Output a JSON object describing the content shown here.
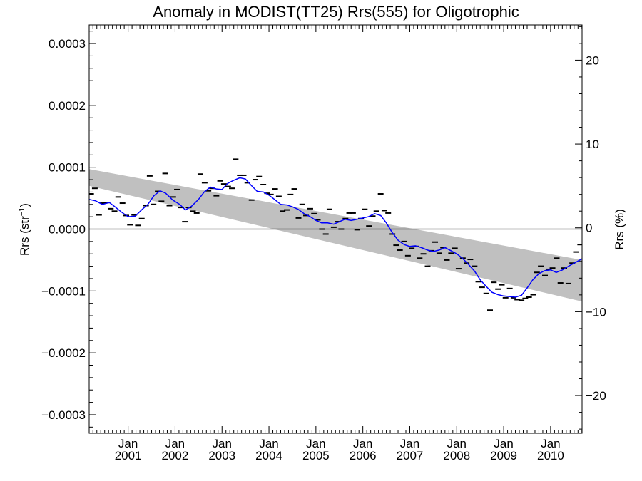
{
  "chart_data": {
    "type": "line",
    "title": "Anomaly in MODIST(TT25) Rrs(555) for Oligotrophic",
    "ylabel_left": "Rrs (str",
    "ylabel_left_sup": "−1",
    "ylabel_left_close": ")",
    "ylabel_right": "Rrs (%)",
    "xlim": [
      2000.17,
      2010.67
    ],
    "ylim_left": [
      -0.00033,
      0.00033
    ],
    "ylim_right": [
      -24.5,
      24.2
    ],
    "left_ticks": [
      {
        "value": 0.0003,
        "label": "0.0003"
      },
      {
        "value": 0.0002,
        "label": "0.0002"
      },
      {
        "value": 0.0001,
        "label": "0.0001"
      },
      {
        "value": 0.0,
        "label": "0.0000"
      },
      {
        "value": -0.0001,
        "label": "−0.0001"
      },
      {
        "value": -0.0002,
        "label": "−0.0002"
      },
      {
        "value": -0.0003,
        "label": "−0.0003"
      }
    ],
    "right_ticks": [
      {
        "value": 20,
        "label": "20"
      },
      {
        "value": 10,
        "label": "10"
      },
      {
        "value": 0,
        "label": "0"
      },
      {
        "value": -10,
        "label": "−10"
      },
      {
        "value": -20,
        "label": "−20"
      }
    ],
    "x_ticks": [
      {
        "value": 2001.0,
        "month": "Jan",
        "year": "2001"
      },
      {
        "value": 2002.0,
        "month": "Jan",
        "year": "2002"
      },
      {
        "value": 2003.0,
        "month": "Jan",
        "year": "2003"
      },
      {
        "value": 2004.0,
        "month": "Jan",
        "year": "2004"
      },
      {
        "value": 2005.0,
        "month": "Jan",
        "year": "2005"
      },
      {
        "value": 2006.0,
        "month": "Jan",
        "year": "2006"
      },
      {
        "value": 2007.0,
        "month": "Jan",
        "year": "2007"
      },
      {
        "value": 2008.0,
        "month": "Jan",
        "year": "2008"
      },
      {
        "value": 2009.0,
        "month": "Jan",
        "year": "2009"
      },
      {
        "value": 2010.0,
        "month": "Jan",
        "year": "2010"
      }
    ],
    "zero_line": 0.0,
    "trend_band": {
      "x": [
        2000.17,
        2010.67
      ],
      "upper": [
        9.7e-05,
        -5e-05
      ],
      "lower": [
        7e-05,
        -0.000117
      ],
      "color": "#c0c0c0"
    },
    "monthly_anomalies": {
      "color": "#000000",
      "x": [
        2000.21,
        2000.29,
        2000.38,
        2000.46,
        2000.54,
        2000.63,
        2000.71,
        2000.79,
        2000.88,
        2000.96,
        2001.04,
        2001.13,
        2001.21,
        2001.29,
        2001.38,
        2001.46,
        2001.54,
        2001.63,
        2001.71,
        2001.79,
        2001.88,
        2001.96,
        2002.04,
        2002.13,
        2002.21,
        2002.29,
        2002.38,
        2002.46,
        2002.54,
        2002.63,
        2002.71,
        2002.79,
        2002.88,
        2002.96,
        2003.04,
        2003.13,
        2003.21,
        2003.29,
        2003.38,
        2003.46,
        2003.54,
        2003.63,
        2003.71,
        2003.79,
        2003.88,
        2003.96,
        2004.04,
        2004.13,
        2004.21,
        2004.29,
        2004.38,
        2004.46,
        2004.54,
        2004.63,
        2004.71,
        2004.79,
        2004.88,
        2004.96,
        2005.04,
        2005.13,
        2005.21,
        2005.29,
        2005.38,
        2005.46,
        2005.54,
        2005.63,
        2005.71,
        2005.79,
        2005.88,
        2005.96,
        2006.04,
        2006.13,
        2006.21,
        2006.29,
        2006.38,
        2006.46,
        2006.54,
        2006.63,
        2006.71,
        2006.79,
        2006.88,
        2006.96,
        2007.04,
        2007.13,
        2007.21,
        2007.29,
        2007.38,
        2007.46,
        2007.54,
        2007.63,
        2007.71,
        2007.79,
        2007.88,
        2007.96,
        2008.04,
        2008.13,
        2008.21,
        2008.29,
        2008.38,
        2008.46,
        2008.54,
        2008.63,
        2008.71,
        2008.79,
        2008.88,
        2008.96,
        2009.04,
        2009.13,
        2009.21,
        2009.29,
        2009.38,
        2009.46,
        2009.54,
        2009.63,
        2009.71,
        2009.79,
        2009.88,
        2009.96,
        2010.04,
        2010.13,
        2010.21,
        2010.29,
        2010.38,
        2010.46,
        2010.54,
        2010.63
      ],
      "y": [
        5.7e-05,
        6.6e-05,
        2.3e-05,
        4.2e-05,
        4.3e-05,
        3.3e-05,
        2.9e-05,
        5.2e-05,
        4.2e-05,
        2.2e-05,
        7e-06,
        2.3e-05,
        6e-06,
        1.7e-05,
        3.8e-05,
        8.6e-05,
        4e-05,
        6.1e-05,
        4.5e-05,
        9e-05,
        3.8e-05,
        5.2e-05,
        6.4e-05,
        3.5e-05,
        1.2e-05,
        3.5e-05,
        2.9e-05,
        2.6e-05,
        8.9e-05,
        7.5e-05,
        6.2e-05,
        6.6e-05,
        5.4e-05,
        7.8e-05,
        7.3e-05,
        6.9e-05,
        6.6e-05,
        0.000113,
        8.7e-05,
        8.7e-05,
        7.5e-05,
        4.7e-05,
        8e-05,
        8.5e-05,
        7.2e-05,
        5.8e-05,
        5.6e-05,
        6.5e-05,
        5.3e-05,
        2.9e-05,
        3.1e-05,
        5.6e-05,
        6.5e-05,
        1.8e-05,
        4e-05,
        2.2e-05,
        3.3e-05,
        2.5e-05,
        1.5e-05,
        0.0,
        -8e-06,
        3.2e-05,
        3e-06,
        1.2e-05,
        0.0,
        1.7e-05,
        2.6e-05,
        2.6e-05,
        -1e-06,
        1.7e-05,
        3.2e-05,
        5e-06,
        2.1e-05,
        2.9e-05,
        5.7e-05,
        3e-05,
        2.6e-05,
        -8e-06,
        -2.6e-05,
        -3.4e-05,
        -2e-05,
        -4.3e-05,
        -3.1e-05,
        -2.8e-05,
        -4.7e-05,
        -4e-05,
        -6e-05,
        -3.5e-05,
        -2.1e-05,
        -3.9e-05,
        -3e-05,
        -5e-05,
        -3.9e-05,
        -3.1e-05,
        -6.4e-05,
        -4.7e-05,
        -5.5e-05,
        -4.9e-05,
        -6e-05,
        -8.5e-05,
        -9.4e-05,
        -0.000104,
        -0.000131,
        -8.6e-05,
        -9.7e-05,
        -9e-05,
        -0.000111,
        -9.6e-05,
        -0.000111,
        -0.000114,
        -0.000115,
        -0.000112,
        -0.00011,
        -0.000106,
        -7e-05,
        -6e-05,
        -7.5e-05,
        -6.5e-05,
        -6.3e-05,
        -4.7e-05,
        -8.7e-05,
        -6.3e-05,
        -8.8e-05,
        -5.5e-05,
        -3.7e-05,
        -2.5e-05
      ]
    },
    "running_mean": {
      "color": "#0000ff",
      "x": [
        2000.17,
        2000.3,
        2000.45,
        2000.6,
        2000.72,
        2000.85,
        2001.0,
        2001.15,
        2001.3,
        2001.42,
        2001.55,
        2001.68,
        2001.8,
        2001.95,
        2002.1,
        2002.22,
        2002.35,
        2002.5,
        2002.62,
        2002.75,
        2002.88,
        2003.0,
        2003.12,
        2003.25,
        2003.38,
        2003.5,
        2003.62,
        2003.75,
        2003.88,
        2004.0,
        2004.12,
        2004.25,
        2004.38,
        2004.5,
        2004.62,
        2004.75,
        2004.88,
        2005.0,
        2005.12,
        2005.25,
        2005.38,
        2005.5,
        2005.62,
        2005.75,
        2005.88,
        2006.0,
        2006.12,
        2006.25,
        2006.38,
        2006.5,
        2006.62,
        2006.75,
        2006.88,
        2007.0,
        2007.12,
        2007.25,
        2007.38,
        2007.5,
        2007.62,
        2007.75,
        2007.88,
        2008.0,
        2008.12,
        2008.25,
        2008.38,
        2008.5,
        2008.62,
        2008.75,
        2008.88,
        2009.0,
        2009.12,
        2009.25,
        2009.38,
        2009.5,
        2009.62,
        2009.75,
        2009.88,
        2010.0,
        2010.12,
        2010.25,
        2010.38,
        2010.5,
        2010.67
      ],
      "y": [
        4.8e-05,
        4.6e-05,
        4e-05,
        4.3e-05,
        3.6e-05,
        2.8e-05,
        2e-05,
        2.1e-05,
        3.2e-05,
        4e-05,
        5.4e-05,
        6.2e-05,
        5.8e-05,
        4.7e-05,
        4e-05,
        3.1e-05,
        3.7e-05,
        4.8e-05,
        6e-05,
        6.8e-05,
        6.5e-05,
        6.4e-05,
        7.4e-05,
        7.9e-05,
        8.3e-05,
        8.1e-05,
        7.1e-05,
        6.1e-05,
        6e-05,
        5.5e-05,
        4.8e-05,
        4e-05,
        3.9e-05,
        3.6e-05,
        3.2e-05,
        2.5e-05,
        2e-05,
        1.4e-05,
        1e-05,
        1e-05,
        8e-06,
        1.2e-05,
        1.6e-05,
        1.4e-05,
        1.6e-05,
        1.8e-05,
        2e-05,
        2.5e-05,
        2.2e-05,
        1e-05,
        -5e-06,
        -1.8e-05,
        -2.5e-05,
        -2.8e-05,
        -2.7e-05,
        -3e-05,
        -3.4e-05,
        -3.6e-05,
        -3.4e-05,
        -3e-05,
        -3.5e-05,
        -4e-05,
        -4.7e-05,
        -5.7e-05,
        -6.8e-05,
        -8.2e-05,
        -9.2e-05,
        -0.000102,
        -0.000106,
        -0.000108,
        -0.000109,
        -0.00011,
        -0.000107,
        -9.5e-05,
        -8.2e-05,
        -7.2e-05,
        -6.7e-05,
        -6.6e-05,
        -7e-05,
        -6.6e-05,
        -6e-05,
        -5.5e-05,
        -4.8e-05
      ]
    }
  }
}
